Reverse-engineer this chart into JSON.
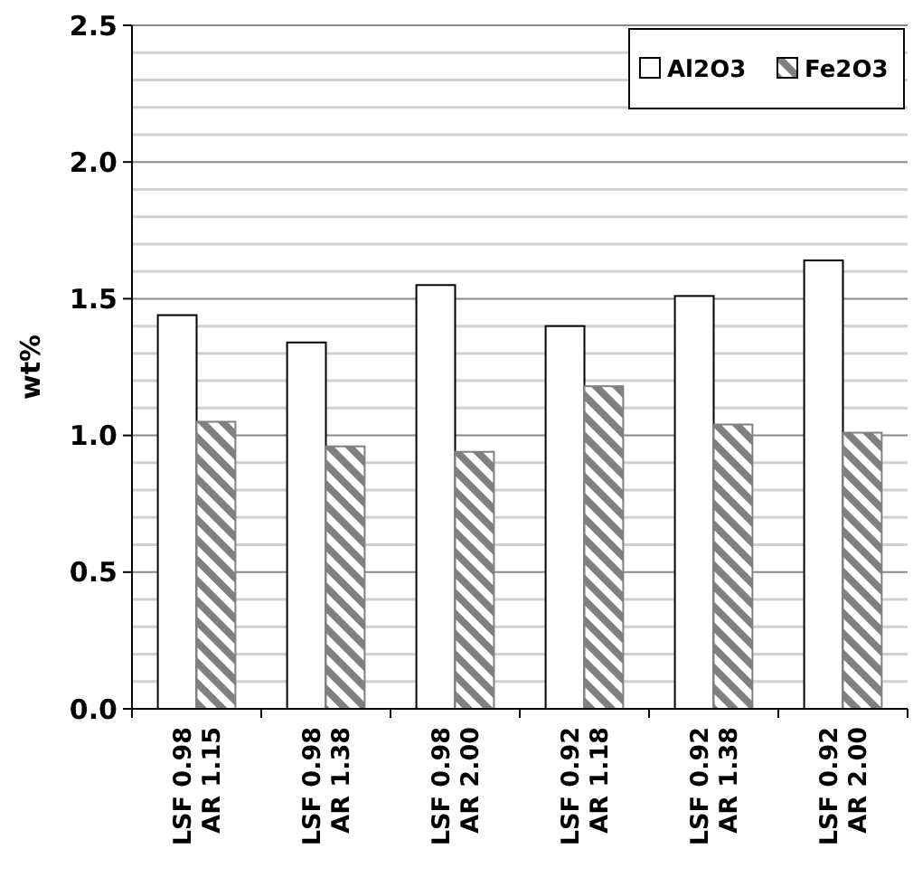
{
  "chart_data": {
    "type": "bar",
    "ylabel": "wt%",
    "categories": [
      "LSF 0.98\nAR 1.15",
      "LSF 0.98\nAR 1.38",
      "LSF 0.98\nAR 2.00",
      "LSF 0.92\nAR 1.18",
      "LSF 0.92\nAR 1.38",
      "LSF 0.92\nAR 2.00"
    ],
    "series": [
      {
        "name": "Al2O3",
        "color": "#ffffff",
        "values": [
          1.44,
          1.34,
          1.55,
          1.4,
          1.51,
          1.64
        ]
      },
      {
        "name": "Fe2O3",
        "color": "#808080",
        "values": [
          1.05,
          0.96,
          0.94,
          1.18,
          1.04,
          1.01
        ]
      }
    ],
    "ylim": [
      0,
      2.5
    ],
    "yticks": [
      {
        "value": 0,
        "label": "0.0"
      },
      {
        "value": 0.1,
        "label": null
      },
      {
        "value": 0.2,
        "label": null
      },
      {
        "value": 0.3,
        "label": null
      },
      {
        "value": 0.4,
        "label": null
      },
      0.5,
      {
        "value": 0.6,
        "label": null
      },
      {
        "value": 0.7,
        "label": null
      },
      {
        "value": 0.8,
        "label": null
      },
      {
        "value": 0.9,
        "label": null
      },
      {
        "value": 1,
        "label": "1.0"
      },
      {
        "value": 1.1,
        "label": null
      },
      {
        "value": 1.2,
        "label": null
      },
      {
        "value": 1.3,
        "label": null
      },
      {
        "value": 1.4,
        "label": null
      },
      1.5,
      {
        "value": 1.6,
        "label": null
      },
      {
        "value": 1.7,
        "label": null
      },
      {
        "value": 1.8,
        "label": null
      },
      {
        "value": 1.9,
        "label": null
      },
      {
        "value": 2,
        "label": "2.0"
      },
      {
        "value": 2.1,
        "label": null
      },
      {
        "value": 2.2,
        "label": null
      },
      {
        "value": 2.3,
        "label": null
      },
      {
        "value": 2.4,
        "label": null
      },
      2.5
    ],
    "grid": "y",
    "legend": "top right"
  }
}
